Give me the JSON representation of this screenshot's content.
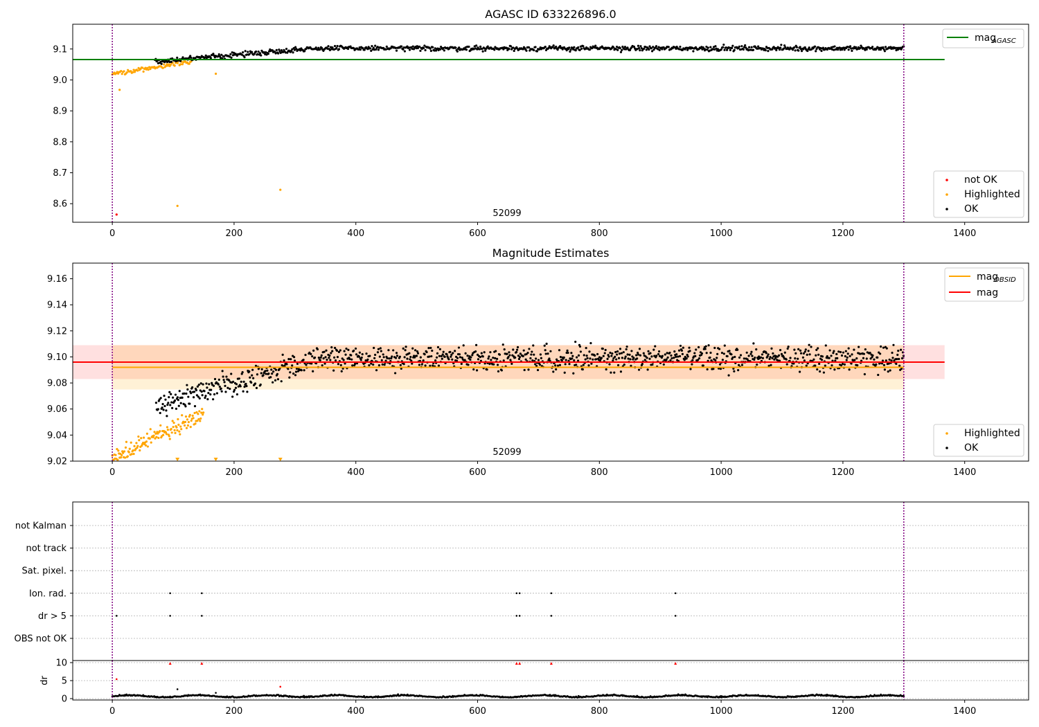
{
  "chart_data": [
    {
      "type": "scatter",
      "title": "AGASC ID 633226896.0",
      "xlim": [
        -65,
        1505
      ],
      "ylim": [
        8.54,
        9.18
      ],
      "x_ticks": [
        "0",
        "200",
        "400",
        "600",
        "800",
        "1000",
        "1200",
        "1400"
      ],
      "y_ticks": [
        "8.6",
        "8.7",
        "8.8",
        "8.9",
        "9.0",
        "9.1"
      ],
      "annotation": "52099",
      "vlines": [
        0,
        1300
      ],
      "reference_line": {
        "label_main": "mag",
        "label_sub": "AGASC",
        "value": 9.066,
        "x_range": [
          -65,
          1367
        ],
        "color": "#008000"
      },
      "legend_top": "top-right",
      "legend_bottom": "bottom-right",
      "series": [
        {
          "name": "not OK",
          "color": "#ff0000",
          "points": [
            [
              7,
              8.565
            ]
          ]
        },
        {
          "name": "Highlighted",
          "color": "#ffa500",
          "trend": "rising from 9.01 at x=0 to 9.06 at x=130",
          "outliers": [
            [
              12,
              8.968
            ],
            [
              107,
              8.593
            ],
            [
              170,
              9.02
            ],
            [
              276,
              8.645
            ]
          ]
        },
        {
          "name": "OK",
          "color": "#000000",
          "trend": "rising from 9.06 at x=70 to ~9.10 at x=330, flat ~9.10 to x=1300"
        }
      ]
    },
    {
      "type": "scatter",
      "title": "Magnitude Estimates",
      "xlim": [
        -65,
        1505
      ],
      "ylim": [
        9.02,
        9.172
      ],
      "x_ticks": [
        "0",
        "200",
        "400",
        "600",
        "800",
        "1000",
        "1200",
        "1400"
      ],
      "y_ticks": [
        "9.02",
        "9.04",
        "9.06",
        "9.08",
        "9.10",
        "9.12",
        "9.14",
        "9.16"
      ],
      "annotation": "52099",
      "vlines": [
        0,
        1300
      ],
      "lines": [
        {
          "label_main": "mag",
          "label_sub": "OBSID",
          "value": 9.092,
          "band": [
            9.075,
            9.109
          ],
          "x_range": [
            0,
            1300
          ],
          "color": "#ffa500"
        },
        {
          "label_main": "mag",
          "label_sub": "",
          "value": 9.096,
          "band": [
            9.083,
            9.109
          ],
          "x_range": [
            -65,
            1367
          ],
          "color": "#ff0000"
        }
      ],
      "series": [
        {
          "name": "Highlighted",
          "color": "#ffa500",
          "trend": "rising from 9.02 at x=0 to 9.055 at x=150"
        },
        {
          "name": "OK",
          "color": "#000000",
          "trend": "rising from 9.06 at x=75 to ~9.10 at x=330, flat ~9.10 to x=1300"
        }
      ],
      "legend_top": "top-right",
      "legend_bottom": "bottom-right"
    },
    {
      "type": "scatter",
      "title": "",
      "xlim": [
        -65,
        1505
      ],
      "x_ticks": [
        "0",
        "200",
        "400",
        "600",
        "800",
        "1000",
        "1200",
        "1400"
      ],
      "flag_labels": [
        "not Kalman",
        "not track",
        "Sat. pixel.",
        "Ion. rad.",
        "dr > 5",
        "OBS not OK"
      ],
      "flags": {
        "Ion. rad.": [
          95,
          147,
          664,
          669,
          721,
          925
        ],
        "dr > 5": [
          7,
          95,
          147,
          664,
          669,
          721,
          925
        ]
      },
      "dr_panel": {
        "ylabel": "dr",
        "y_ticks": [
          "0",
          "5",
          "10"
        ],
        "ylim": [
          0,
          10
        ],
        "clipped_high": [
          95,
          147,
          664,
          669,
          721,
          925
        ],
        "outliers": [
          [
            7,
            5.4
          ],
          [
            107,
            2.6
          ],
          [
            170,
            1.6
          ],
          [
            276,
            3.3
          ]
        ],
        "trend": "mostly between 0 and 1"
      },
      "vlines": [
        0,
        1300
      ]
    }
  ]
}
